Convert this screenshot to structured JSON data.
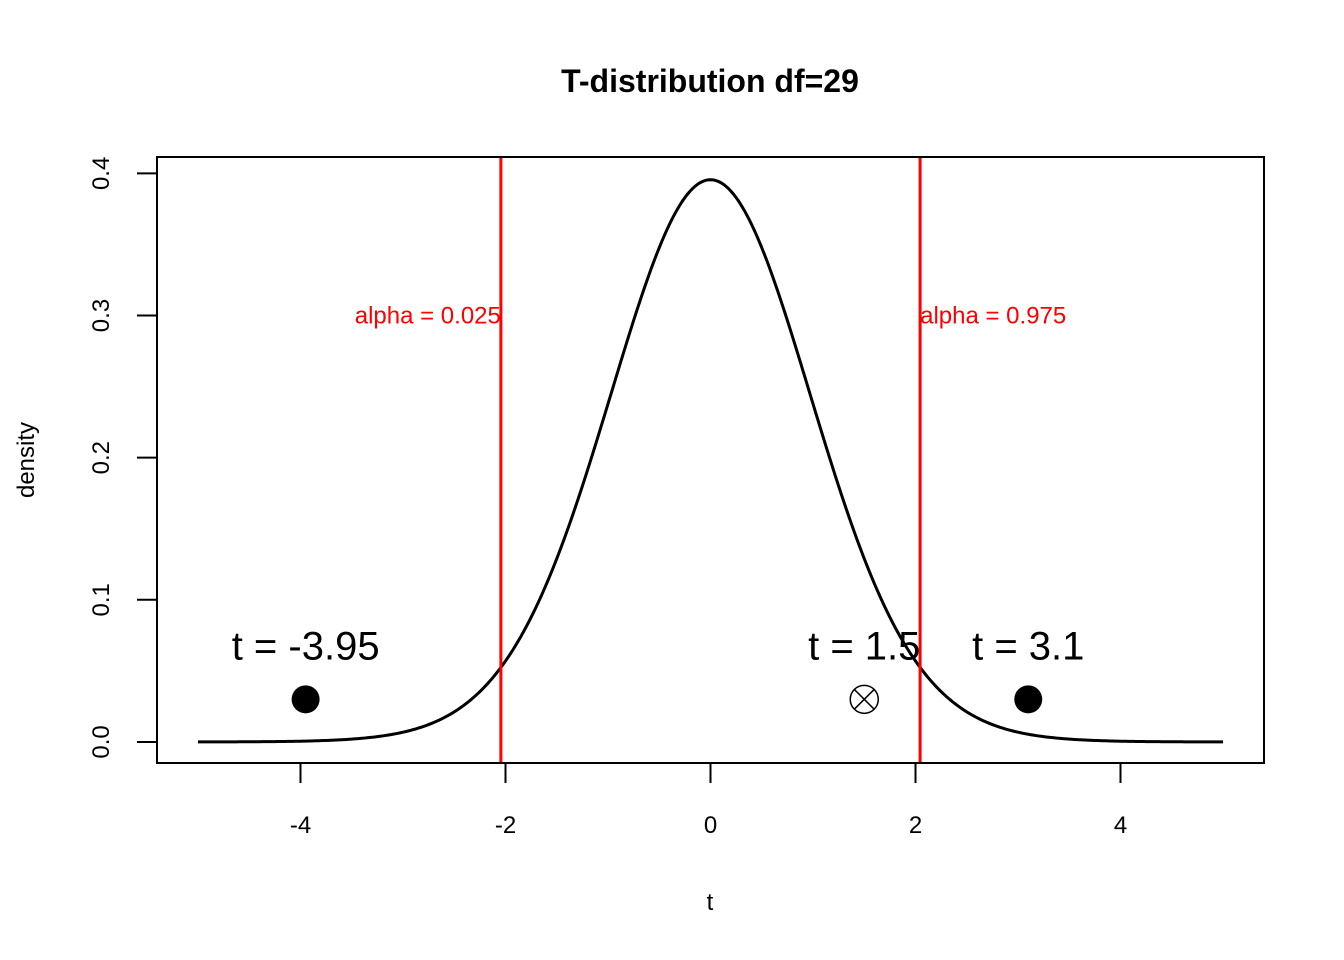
{
  "chart_data": {
    "type": "line",
    "title": "T-distribution df=29",
    "xlabel": "t",
    "ylabel": "density",
    "xlim": [
      -5.4,
      5.4
    ],
    "ylim": [
      -0.0148,
      0.4115
    ],
    "grid": false,
    "df": 29,
    "x_ticks": [
      -4,
      -2,
      0,
      2,
      4
    ],
    "x_tick_labels": [
      "-4",
      "-2",
      "0",
      "2",
      "4"
    ],
    "y_ticks": [
      0.0,
      0.1,
      0.2,
      0.3,
      0.4
    ],
    "y_tick_labels": [
      "0.0",
      "0.1",
      "0.2",
      "0.3",
      "0.4"
    ],
    "series": [
      {
        "style": "line",
        "color": "#000000",
        "x": [
          -5.0,
          -4.5,
          -4.0,
          -3.5,
          -3.0,
          -2.5,
          -2.0,
          -1.5,
          -1.0,
          -0.5,
          0.0,
          0.5,
          1.0,
          1.5,
          2.0,
          2.5,
          3.0,
          3.5,
          4.0,
          4.5,
          5.0
        ],
        "y": [
          3e-05,
          0.00011,
          0.0004,
          0.0015,
          0.0051,
          0.0171,
          0.0545,
          0.1281,
          0.2393,
          0.3466,
          0.396,
          0.3466,
          0.2393,
          0.1281,
          0.0545,
          0.0171,
          0.0051,
          0.0015,
          0.0004,
          0.00011,
          3e-05
        ]
      }
    ],
    "reference_lines": [
      {
        "x": -2.045,
        "color": "#ff0000",
        "label": "alpha = 0.025",
        "label_y": 0.3,
        "label_anchor": "end"
      },
      {
        "x": 2.045,
        "color": "#ff0000",
        "label": "alpha = 0.975",
        "label_y": 0.3,
        "label_anchor": "start"
      }
    ],
    "points": [
      {
        "x": -3.95,
        "y": 0.03,
        "marker": "filled-circle",
        "label": "t = -3.95"
      },
      {
        "x": 1.5,
        "y": 0.03,
        "marker": "circle-x",
        "label": "t = 1.5"
      },
      {
        "x": 3.1,
        "y": 0.03,
        "marker": "filled-circle",
        "label": "t = 3.1"
      }
    ],
    "label_y": 0.068
  }
}
